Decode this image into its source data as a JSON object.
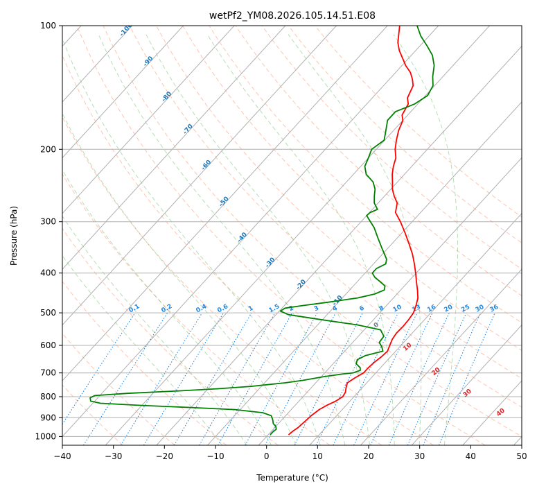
{
  "chart_data": {
    "type": "line",
    "title": "wetPf2_YM08.2026.105.14.51.E08",
    "xlabel": "Temperature (°C)",
    "ylabel": "Pressure (hPa)",
    "xlim": [
      -40,
      50
    ],
    "ylim_pressure": [
      1050,
      100
    ],
    "skew": 32,
    "x_ticks": [
      -40,
      -30,
      -20,
      -10,
      0,
      10,
      20,
      30,
      40,
      50
    ],
    "x_tick_labels": [
      "−40",
      "−30",
      "−20",
      "−10",
      "0",
      "10",
      "20",
      "30",
      "40",
      "50"
    ],
    "y_ticks": [
      1000,
      900,
      800,
      700,
      600,
      500,
      400,
      300,
      200,
      100
    ],
    "y_tick_labels": [
      "1000",
      "900",
      "800",
      "700",
      "600",
      "500",
      "400",
      "300",
      "200",
      "100"
    ],
    "series": [
      {
        "name": "Temperature",
        "color": "#ff0000",
        "points": [
          [
            990,
            4.0
          ],
          [
            970,
            4.2
          ],
          [
            950,
            4.6
          ],
          [
            920,
            4.8
          ],
          [
            890,
            5.0
          ],
          [
            860,
            5.5
          ],
          [
            840,
            6.2
          ],
          [
            820,
            7.2
          ],
          [
            800,
            7.8
          ],
          [
            780,
            7.5
          ],
          [
            760,
            6.8
          ],
          [
            740,
            6.2
          ],
          [
            720,
            6.8
          ],
          [
            700,
            7.6
          ],
          [
            680,
            7.6
          ],
          [
            660,
            7.8
          ],
          [
            640,
            8.2
          ],
          [
            620,
            8.4
          ],
          [
            600,
            7.8
          ],
          [
            580,
            7.2
          ],
          [
            560,
            6.9
          ],
          [
            540,
            7.0
          ],
          [
            520,
            6.9
          ],
          [
            500,
            6.6
          ],
          [
            480,
            5.8
          ],
          [
            460,
            4.8
          ],
          [
            440,
            3.3
          ],
          [
            420,
            1.6
          ],
          [
            400,
            -0.1
          ],
          [
            380,
            -2.0
          ],
          [
            360,
            -4.1
          ],
          [
            340,
            -6.6
          ],
          [
            320,
            -9.3
          ],
          [
            300,
            -12.3
          ],
          [
            285,
            -14.9
          ],
          [
            270,
            -16.3
          ],
          [
            260,
            -18.1
          ],
          [
            250,
            -19.7
          ],
          [
            240,
            -21.0
          ],
          [
            230,
            -22.4
          ],
          [
            220,
            -23.6
          ],
          [
            210,
            -24.6
          ],
          [
            200,
            -26.3
          ],
          [
            190,
            -27.7
          ],
          [
            180,
            -29.0
          ],
          [
            170,
            -30.0
          ],
          [
            165,
            -31.1
          ],
          [
            155,
            -31.9
          ],
          [
            150,
            -33.1
          ],
          [
            140,
            -34.2
          ],
          [
            135,
            -35.5
          ],
          [
            130,
            -37.1
          ],
          [
            125,
            -39.3
          ],
          [
            120,
            -41.2
          ],
          [
            115,
            -43.2
          ],
          [
            110,
            -44.9
          ],
          [
            100,
            -47.6
          ]
        ]
      },
      {
        "name": "Dewpoint",
        "color": "#008000",
        "points": [
          [
            990,
            0.4
          ],
          [
            975,
            0.4
          ],
          [
            960,
            0.6
          ],
          [
            945,
            0.0
          ],
          [
            930,
            -1.0
          ],
          [
            910,
            -1.8
          ],
          [
            890,
            -2.8
          ],
          [
            875,
            -5.0
          ],
          [
            860,
            -11.0
          ],
          [
            850,
            -20.0
          ],
          [
            840,
            -30.0
          ],
          [
            830,
            -38.5
          ],
          [
            820,
            -40.8
          ],
          [
            805,
            -41.5
          ],
          [
            795,
            -41.0
          ],
          [
            785,
            -35.0
          ],
          [
            775,
            -26.0
          ],
          [
            765,
            -18.0
          ],
          [
            755,
            -12.0
          ],
          [
            740,
            -6.0
          ],
          [
            730,
            -3.0
          ],
          [
            715,
            0.5
          ],
          [
            705,
            3.5
          ],
          [
            700,
            5.5
          ],
          [
            690,
            6.5
          ],
          [
            680,
            6.0
          ],
          [
            665,
            4.5
          ],
          [
            650,
            4.0
          ],
          [
            635,
            4.9
          ],
          [
            620,
            7.5
          ],
          [
            605,
            6.5
          ],
          [
            590,
            5.2
          ],
          [
            570,
            5.0
          ],
          [
            550,
            3.2
          ],
          [
            535,
            -2.2
          ],
          [
            520,
            -10.0
          ],
          [
            505,
            -17.6
          ],
          [
            495,
            -19.8
          ],
          [
            487,
            -19.4
          ],
          [
            480,
            -16.4
          ],
          [
            470,
            -11.5
          ],
          [
            460,
            -7.0
          ],
          [
            450,
            -4.4
          ],
          [
            440,
            -3.2
          ],
          [
            430,
            -3.8
          ],
          [
            420,
            -5.5
          ],
          [
            410,
            -7.3
          ],
          [
            400,
            -8.6
          ],
          [
            390,
            -8.6
          ],
          [
            380,
            -7.6
          ],
          [
            370,
            -8.3
          ],
          [
            350,
            -10.9
          ],
          [
            330,
            -13.6
          ],
          [
            310,
            -16.4
          ],
          [
            290,
            -20.0
          ],
          [
            285,
            -19.9
          ],
          [
            280,
            -19.0
          ],
          [
            270,
            -20.8
          ],
          [
            260,
            -22.0
          ],
          [
            250,
            -23.1
          ],
          [
            240,
            -24.8
          ],
          [
            230,
            -27.5
          ],
          [
            220,
            -29.2
          ],
          [
            210,
            -30.0
          ],
          [
            200,
            -30.9
          ],
          [
            190,
            -30.1
          ],
          [
            180,
            -31.5
          ],
          [
            170,
            -33.0
          ],
          [
            162,
            -33.0
          ],
          [
            155,
            -30.6
          ],
          [
            148,
            -29.6
          ],
          [
            140,
            -30.3
          ],
          [
            133,
            -32.0
          ],
          [
            125,
            -33.7
          ],
          [
            118,
            -35.9
          ],
          [
            112,
            -38.6
          ],
          [
            106,
            -41.6
          ],
          [
            100,
            -44.2
          ]
        ]
      }
    ],
    "dry_adiabats_c": [
      -30,
      -20,
      -10,
      0,
      10,
      20,
      30,
      40,
      50,
      60,
      70,
      80,
      90,
      100,
      110,
      120,
      130
    ],
    "moist_adiabats_c": [
      -10,
      -5,
      0,
      5,
      10,
      15,
      20,
      25,
      30,
      35
    ],
    "mixing_ratio_labels": [
      "0.1",
      "0.2",
      "0.4",
      "0.6",
      "1",
      "1.5",
      "2",
      "3",
      "4",
      "6",
      "8",
      "10",
      "13",
      "16",
      "20",
      "25",
      "30",
      "36"
    ],
    "mixing_ratio_values": [
      0.1,
      0.2,
      0.4,
      0.6,
      1,
      1.5,
      2,
      3,
      4,
      6,
      8,
      10,
      13,
      16,
      20,
      25,
      30,
      36
    ],
    "isotherm_labels": [
      "-100",
      "-90",
      "-80",
      "-70",
      "-60",
      "-50",
      "-40",
      "-30",
      "-20",
      "-10"
    ],
    "isotherm_values": [
      -100,
      -90,
      -80,
      -70,
      -60,
      -50,
      -40,
      -30,
      -20,
      -10
    ],
    "isotherm_label_pressures": [
      103,
      123,
      150,
      180,
      220,
      270,
      330,
      380,
      430,
      470
    ],
    "wetbulb_labels": [
      "0",
      "10",
      "20",
      "30",
      "40"
    ],
    "wetbulb_values": [
      0,
      10,
      20,
      30,
      40
    ],
    "wetbulb_label_pressures": [
      540,
      610,
      700,
      790,
      880
    ]
  },
  "colors": {
    "temperature": "#ff0000",
    "dewpoint": "#008000",
    "isotherm_label": "#1f77b4",
    "mixing_ratio": "#1e88e5",
    "dry_adiabat": "#ff7f50",
    "moist_adiabat": "#2ca02c",
    "wetbulb_label": "#d62728",
    "grid": "#b0b0b0"
  }
}
